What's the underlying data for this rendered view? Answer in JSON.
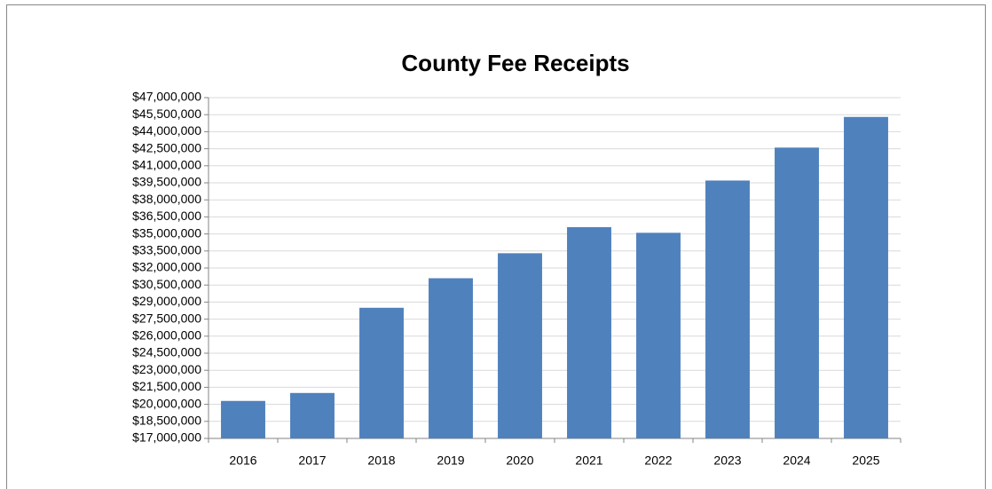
{
  "chart_data": {
    "type": "bar",
    "title": "County Fee Receipts",
    "categories": [
      "2016",
      "2017",
      "2018",
      "2019",
      "2020",
      "2021",
      "2022",
      "2023",
      "2024",
      "2025"
    ],
    "values": [
      20300000,
      21000000,
      28500000,
      31100000,
      33300000,
      35600000,
      35100000,
      39700000,
      42600000,
      45300000
    ],
    "color": "#4f81bd",
    "ylim": [
      17000000,
      47000000
    ],
    "yticks": [
      {
        "value": 17000000,
        "label": "$17,000,000"
      },
      {
        "value": 18500000,
        "label": "$18,500,000"
      },
      {
        "value": 20000000,
        "label": "$20,000,000"
      },
      {
        "value": 21500000,
        "label": "$21,500,000"
      },
      {
        "value": 23000000,
        "label": "$23,000,000"
      },
      {
        "value": 24500000,
        "label": "$24,500,000"
      },
      {
        "value": 26000000,
        "label": "$26,000,000"
      },
      {
        "value": 27500000,
        "label": "$27,500,000"
      },
      {
        "value": 29000000,
        "label": "$29,000,000"
      },
      {
        "value": 30500000,
        "label": "$30,500,000"
      },
      {
        "value": 32000000,
        "label": "$32,000,000"
      },
      {
        "value": 33500000,
        "label": "$33,500,000"
      },
      {
        "value": 35000000,
        "label": "$35,000,000"
      },
      {
        "value": 36500000,
        "label": "$36,500,000"
      },
      {
        "value": 38000000,
        "label": "$38,000,000"
      },
      {
        "value": 39500000,
        "label": "$39,500,000"
      },
      {
        "value": 41000000,
        "label": "$41,000,000"
      },
      {
        "value": 42500000,
        "label": "$42,500,000"
      },
      {
        "value": 44000000,
        "label": "$44,000,000"
      },
      {
        "value": 45500000,
        "label": "$45,500,000"
      },
      {
        "value": 47000000,
        "label": "$47,000,000"
      }
    ],
    "grid": true
  }
}
